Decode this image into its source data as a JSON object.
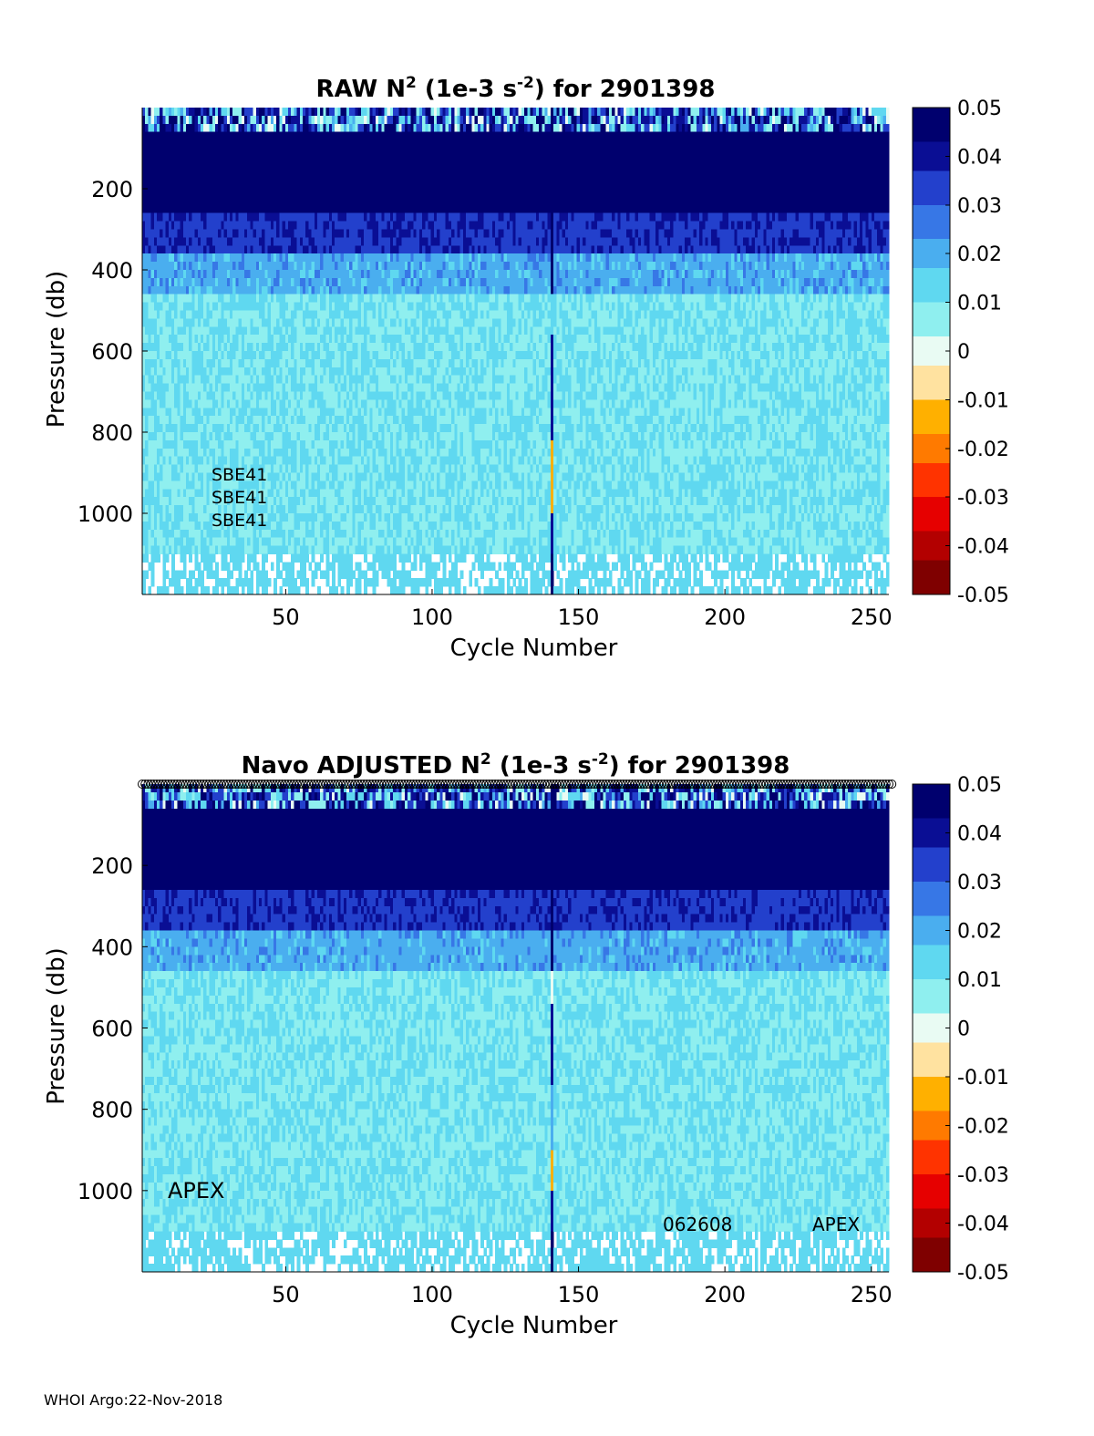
{
  "footer": "WHOI Argo:22-Nov-2018",
  "colormap": [
    "#7f0000",
    "#b30000",
    "#e60000",
    "#ff3300",
    "#ff7a00",
    "#ffb000",
    "#ffe2a0",
    "#e9fbf3",
    "#8fefef",
    "#5fd8f0",
    "#4aaeef",
    "#3777e6",
    "#2340cc",
    "#0a0e94",
    "#00006e"
  ],
  "chart_data": [
    {
      "type": "heatmap",
      "title_parts": [
        "RAW N",
        "2",
        " (1e-3 s",
        "-2",
        ") for 2901398"
      ],
      "xlabel": "Cycle Number",
      "ylabel": "Pressure (db)",
      "xlim": [
        1,
        256
      ],
      "ylim": [
        0,
        1200
      ],
      "y_reversed": true,
      "xticks": [
        50,
        100,
        150,
        200,
        250
      ],
      "yticks": [
        200,
        400,
        600,
        800,
        1000
      ],
      "colorbar": {
        "clim": [
          -0.05,
          0.05
        ],
        "ticks": [
          "0.05",
          "0.04",
          "0.03",
          "0.02",
          "0.01",
          "0",
          "-0.01",
          "-0.02",
          "-0.03",
          "-0.04",
          "-0.05"
        ]
      },
      "annotations": [
        "SBE41",
        "SBE41",
        "SBE41"
      ],
      "depth_bands": [
        {
          "p": [
            0,
            60
          ],
          "value": 0.03,
          "note": "near-surface, mixed/noisy"
        },
        {
          "p": [
            60,
            260
          ],
          "value": 0.05
        },
        {
          "p": [
            260,
            350
          ],
          "value": 0.035
        },
        {
          "p": [
            350,
            450
          ],
          "value": 0.02
        },
        {
          "p": [
            450,
            1100
          ],
          "value": 0.01
        },
        {
          "p": [
            1100,
            1200
          ],
          "value": 0.01,
          "note": "sparse coverage"
        }
      ],
      "anomaly_cycle": 141,
      "anomaly_profile": [
        {
          "p": [
            0,
            450
          ],
          "value": 0.05
        },
        {
          "p": [
            450,
            550
          ],
          "value": 0.01
        },
        {
          "p": [
            550,
            820
          ],
          "value": 0.04
        },
        {
          "p": [
            820,
            1000
          ],
          "value": -0.01
        },
        {
          "p": [
            1000,
            1100
          ],
          "value": 0.04
        },
        {
          "p": [
            1100,
            1200
          ],
          "value": 0.045
        }
      ],
      "show_top_markers": false
    },
    {
      "type": "heatmap",
      "title_parts": [
        "Navo  ADJUSTED N",
        "2",
        " (1e-3 s",
        "-2",
        ") for 2901398"
      ],
      "xlabel": "Cycle Number",
      "ylabel": "Pressure (db)",
      "xlim": [
        1,
        256
      ],
      "ylim": [
        0,
        1200
      ],
      "y_reversed": true,
      "xticks": [
        50,
        100,
        150,
        200,
        250
      ],
      "yticks": [
        200,
        400,
        600,
        800,
        1000
      ],
      "colorbar": {
        "clim": [
          -0.05,
          0.05
        ],
        "ticks": [
          "0.05",
          "0.04",
          "0.03",
          "0.02",
          "0.01",
          "0",
          "-0.01",
          "-0.02",
          "-0.03",
          "-0.04",
          "-0.05"
        ]
      },
      "annotations": [
        "APEX",
        "062608",
        "APEX"
      ],
      "depth_bands": [
        {
          "p": [
            0,
            60
          ],
          "value": 0.03,
          "note": "near-surface, mixed/noisy"
        },
        {
          "p": [
            60,
            260
          ],
          "value": 0.05
        },
        {
          "p": [
            260,
            350
          ],
          "value": 0.035
        },
        {
          "p": [
            350,
            450
          ],
          "value": 0.02
        },
        {
          "p": [
            450,
            1100
          ],
          "value": 0.01
        },
        {
          "p": [
            1100,
            1200
          ],
          "value": 0.01,
          "note": "sparse coverage"
        }
      ],
      "anomaly_cycle": 141,
      "anomaly_profile": [
        {
          "p": [
            0,
            450
          ],
          "value": 0.05
        },
        {
          "p": [
            450,
            530
          ],
          "value": 0.0
        },
        {
          "p": [
            530,
            730
          ],
          "value": 0.04
        },
        {
          "p": [
            730,
            900
          ],
          "value": 0.02
        },
        {
          "p": [
            900,
            1000
          ],
          "value": -0.01
        },
        {
          "p": [
            1000,
            1100
          ],
          "value": 0.04
        },
        {
          "p": [
            1100,
            1200
          ],
          "value": 0.045
        }
      ],
      "show_top_markers": true
    }
  ]
}
